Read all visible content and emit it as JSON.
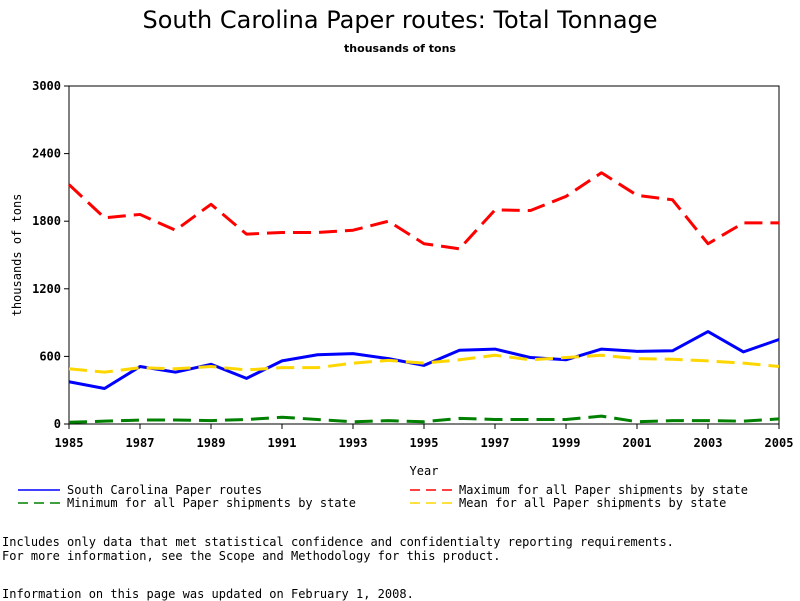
{
  "chart_data": {
    "type": "line",
    "title": "South Carolina Paper routes: Total Tonnage",
    "subtitle": "thousands of tons",
    "xlabel": "Year",
    "ylabel": "thousands of tons",
    "xlim": [
      1985,
      2005
    ],
    "ylim": [
      0,
      3000
    ],
    "x_ticks": [
      "1985",
      "1987",
      "1989",
      "1991",
      "1993",
      "1995",
      "1997",
      "1999",
      "2001",
      "2003",
      "2005"
    ],
    "y_ticks": [
      "0",
      "600",
      "1200",
      "1800",
      "2400",
      "3000"
    ],
    "grid": false,
    "legend_placement": "bottom",
    "x": [
      1985,
      1986,
      1987,
      1988,
      1989,
      1990,
      1991,
      1992,
      1993,
      1994,
      1995,
      1996,
      1997,
      1998,
      1999,
      2000,
      2001,
      2002,
      2003,
      2004,
      2005
    ],
    "series": [
      {
        "name": "South Carolina Paper routes",
        "color": "#0000ff",
        "dash": "solid",
        "values": [
          375,
          315,
          510,
          460,
          530,
          405,
          560,
          615,
          625,
          580,
          520,
          655,
          665,
          590,
          570,
          665,
          645,
          650,
          820,
          640,
          750
        ]
      },
      {
        "name": "Maximum for all Paper shipments by state",
        "color": "#ff0000",
        "dash": "dashed",
        "values": [
          2125,
          1830,
          1860,
          1720,
          1950,
          1685,
          1700,
          1700,
          1720,
          1800,
          1600,
          1555,
          1900,
          1895,
          2020,
          2230,
          2030,
          1990,
          1600,
          1785,
          1785
        ]
      },
      {
        "name": "Minimum for all Paper shipments by state",
        "color": "#008000",
        "dash": "dashed",
        "values": [
          15,
          25,
          35,
          35,
          30,
          40,
          60,
          40,
          20,
          30,
          20,
          50,
          40,
          40,
          40,
          70,
          20,
          30,
          30,
          25,
          45
        ]
      },
      {
        "name": "Mean for all Paper shipments by state",
        "color": "#ffd700",
        "dash": "dashed",
        "values": [
          490,
          460,
          500,
          490,
          510,
          480,
          500,
          500,
          540,
          565,
          540,
          570,
          610,
          570,
          590,
          610,
          580,
          575,
          560,
          540,
          510
        ]
      }
    ]
  },
  "notes": {
    "line1": "Includes only data that met statistical confidence and confidentialty reporting requirements.",
    "line2": "For more information, see the Scope and Methodology for this product.",
    "updated": "Information on this page was updated on February 1, 2008."
  }
}
